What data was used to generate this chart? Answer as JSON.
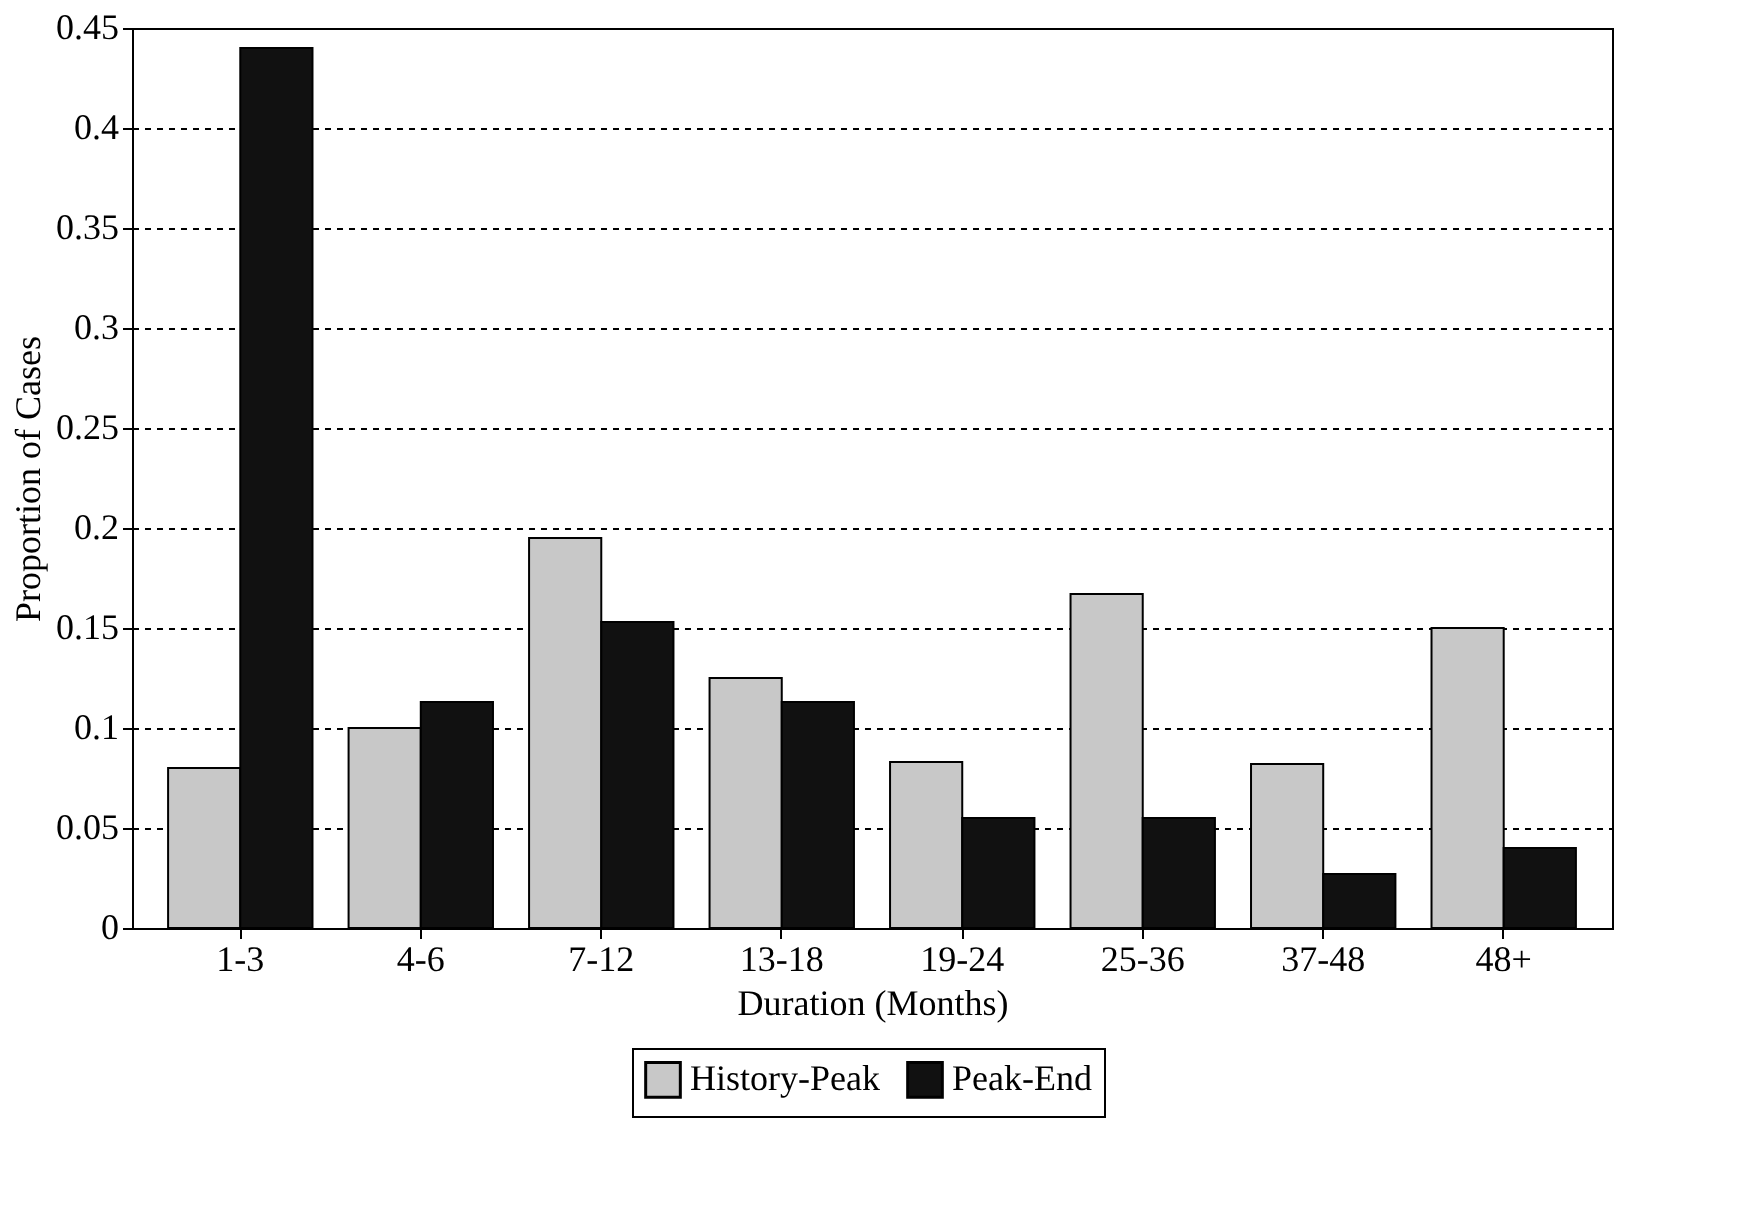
{
  "chart_data": {
    "type": "bar",
    "xlabel": "Duration (Months)",
    "ylabel": "Proportion of Cases",
    "categories": [
      "1-3",
      "4-6",
      "7-12",
      "13-18",
      "19-24",
      "25-36",
      "37-48",
      "48+"
    ],
    "series": [
      {
        "name": "History-Peak",
        "color": "#c8c8c8",
        "values": [
          0.08,
          0.1,
          0.195,
          0.125,
          0.083,
          0.167,
          0.082,
          0.15
        ]
      },
      {
        "name": "Peak-End",
        "color": "#111111",
        "values": [
          0.44,
          0.113,
          0.153,
          0.113,
          0.055,
          0.055,
          0.027,
          0.04
        ]
      }
    ],
    "ylim": [
      0,
      0.45
    ],
    "yticks": [
      0,
      0.05,
      0.1,
      0.15,
      0.2,
      0.25,
      0.3,
      0.35,
      0.4,
      0.45
    ],
    "grid": "y",
    "legend": "bottom"
  }
}
